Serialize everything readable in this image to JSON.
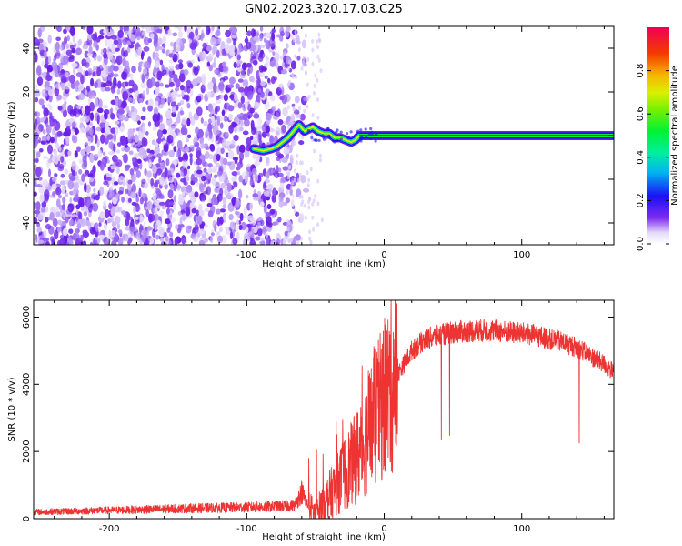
{
  "title": "GN02.2023.320.17.03.C25",
  "chart_data": [
    {
      "type": "heatmap",
      "xlabel": "Height of straight line (km)",
      "ylabel": "Frequency (Hz)",
      "xlim": [
        -255,
        167
      ],
      "ylim": [
        -50,
        50
      ],
      "xticks": [
        -200,
        -100,
        0,
        100
      ],
      "yticks": [
        -40,
        -20,
        0,
        20,
        40
      ],
      "ridge": {
        "x": [
          -95,
          -88,
          -82,
          -78,
          -74,
          -70,
          -66,
          -62,
          -58,
          -55,
          -52,
          -48,
          -44,
          -40,
          -36,
          -32,
          -28,
          -24,
          -21,
          -18,
          -14,
          -10,
          -5,
          0,
          40,
          80,
          120,
          167
        ],
        "freq": [
          -6,
          -7,
          -6,
          -5,
          -3,
          -1,
          2,
          5,
          2,
          3,
          4,
          2,
          1,
          1,
          -1,
          -1,
          -2,
          -3,
          -2,
          0,
          0,
          0,
          0,
          0,
          0,
          0,
          0,
          0
        ]
      },
      "colorbar": {
        "label": "Normalized spectral amplitude",
        "ticks": [
          0.0,
          0.2,
          0.4,
          0.6,
          0.8
        ],
        "range": [
          0,
          1
        ]
      }
    },
    {
      "type": "line",
      "xlabel": "Height of straight line (km)",
      "ylabel": "SNR (10 * v/v)",
      "xlim": [
        -255,
        167
      ],
      "ylim": [
        0,
        6500
      ],
      "xticks": [
        -200,
        -100,
        0,
        100
      ],
      "yticks": [
        0,
        2000,
        4000,
        6000
      ],
      "series": [
        {
          "color": "#ee3333",
          "x": [
            -255,
            -230,
            -200,
            -175,
            -150,
            -125,
            -100,
            -80,
            -65,
            -60,
            -55,
            -50,
            -45,
            -40,
            -35,
            -30,
            -25,
            -20,
            -15,
            -10,
            -5,
            0,
            10,
            20,
            30,
            40,
            50,
            60,
            70,
            80,
            90,
            100,
            110,
            120,
            130,
            140,
            150,
            160,
            167
          ],
          "y": [
            200,
            220,
            250,
            270,
            300,
            320,
            340,
            360,
            400,
            800,
            350,
            150,
            450,
            700,
            950,
            1300,
            1550,
            1850,
            2250,
            2750,
            3100,
            3550,
            4300,
            5000,
            5350,
            5450,
            5550,
            5580,
            5600,
            5600,
            5550,
            5520,
            5450,
            5350,
            5250,
            5100,
            4850,
            4600,
            4350
          ]
        }
      ]
    }
  ]
}
